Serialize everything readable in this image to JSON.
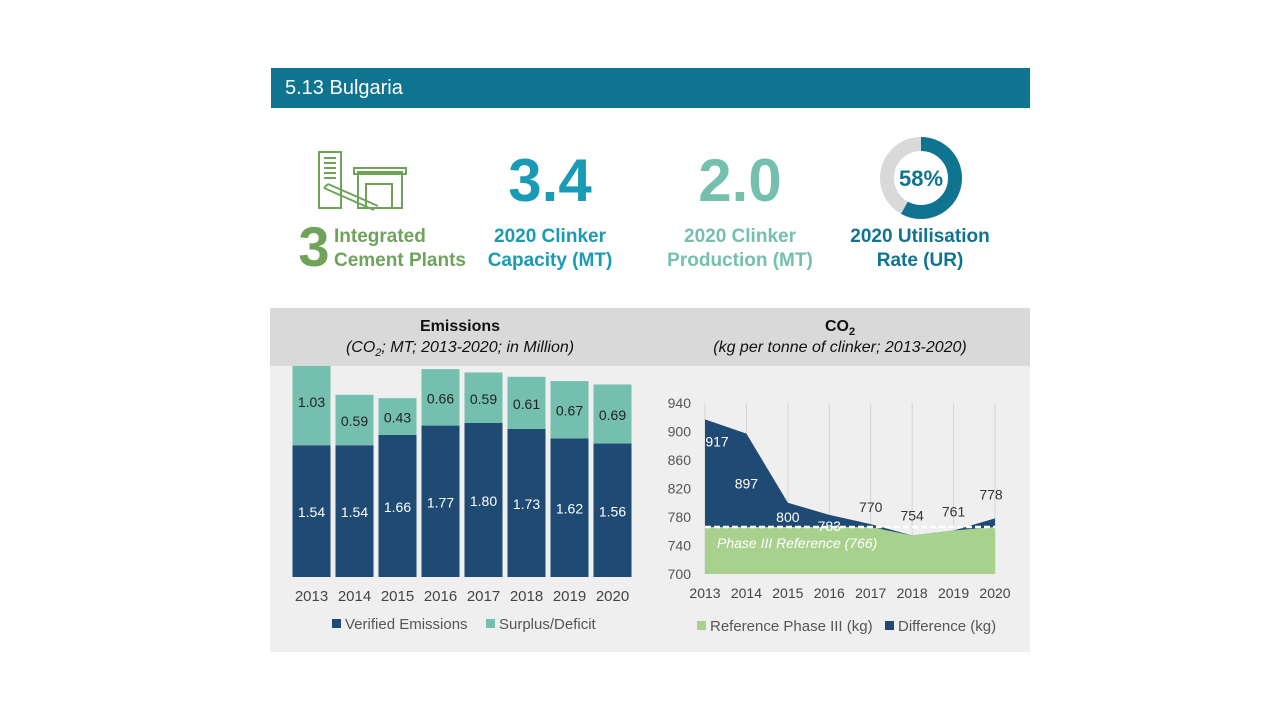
{
  "header": {
    "title": "5.13 Bulgaria"
  },
  "kpis": {
    "plants": {
      "number": "3",
      "label_line1": "Integrated",
      "label_line2": "Cement Plants"
    },
    "capacity": {
      "value": "3.4",
      "label_line1": "2020 Clinker",
      "label_line2": "Capacity (MT)"
    },
    "production": {
      "value": "2.0",
      "label_line1": "2020 Clinker",
      "label_line2": "Production (MT)"
    },
    "utilisation": {
      "value": "58%",
      "fraction": 0.58,
      "label_line1": "2020 Utilisation",
      "label_line2": "Rate (UR)"
    }
  },
  "colors": {
    "teal_dark": "#0e7490",
    "teal_capacity": "#1a9bb5",
    "teal_light": "#74bfae",
    "green": "#6fa35c",
    "navy": "#1f4a73",
    "ref_green": "#a9d18e",
    "donut_grey": "#d9d9d9"
  },
  "panels": {
    "emissions": {
      "title": "Emissions",
      "subtitle_pre": "(CO",
      "subtitle_sub": "2",
      "subtitle_post": "; MT; 2013-2020; in Million)"
    },
    "co2": {
      "title_main": "CO",
      "title_sub": "2",
      "subtitle": "(kg per tonne of clinker; 2013-2020)"
    }
  },
  "chart_data": [
    {
      "type": "bar",
      "stacked": true,
      "categories": [
        "2013",
        "2014",
        "2015",
        "2016",
        "2017",
        "2018",
        "2019",
        "2020"
      ],
      "series": [
        {
          "name": "Verified Emissions",
          "values": [
            1.54,
            1.54,
            1.66,
            1.77,
            1.8,
            1.73,
            1.62,
            1.56
          ],
          "color": "#1f4a73"
        },
        {
          "name": "Surplus/Deficit",
          "values": [
            1.03,
            0.59,
            0.43,
            0.66,
            0.59,
            0.61,
            0.67,
            0.69
          ],
          "color": "#74bfae"
        }
      ],
      "ylim": [
        0,
        2.8
      ],
      "legend": "bottom",
      "grid": false
    },
    {
      "type": "area",
      "categories": [
        "2013",
        "2014",
        "2015",
        "2016",
        "2017",
        "2018",
        "2019",
        "2020"
      ],
      "values": [
        917,
        897,
        800,
        783,
        770,
        754,
        761,
        778
      ],
      "reference": {
        "label": "Phase III Reference (766)",
        "value": 766
      },
      "series": [
        {
          "name": "Reference Phase III (kg)",
          "color": "#a9d18e"
        },
        {
          "name": "Difference (kg)",
          "color": "#1f4a73"
        }
      ],
      "yticks": [
        "940",
        "900",
        "860",
        "820",
        "780",
        "740",
        "700"
      ],
      "ylim": [
        700,
        940
      ],
      "legend": "bottom",
      "grid": "vertical"
    }
  ]
}
